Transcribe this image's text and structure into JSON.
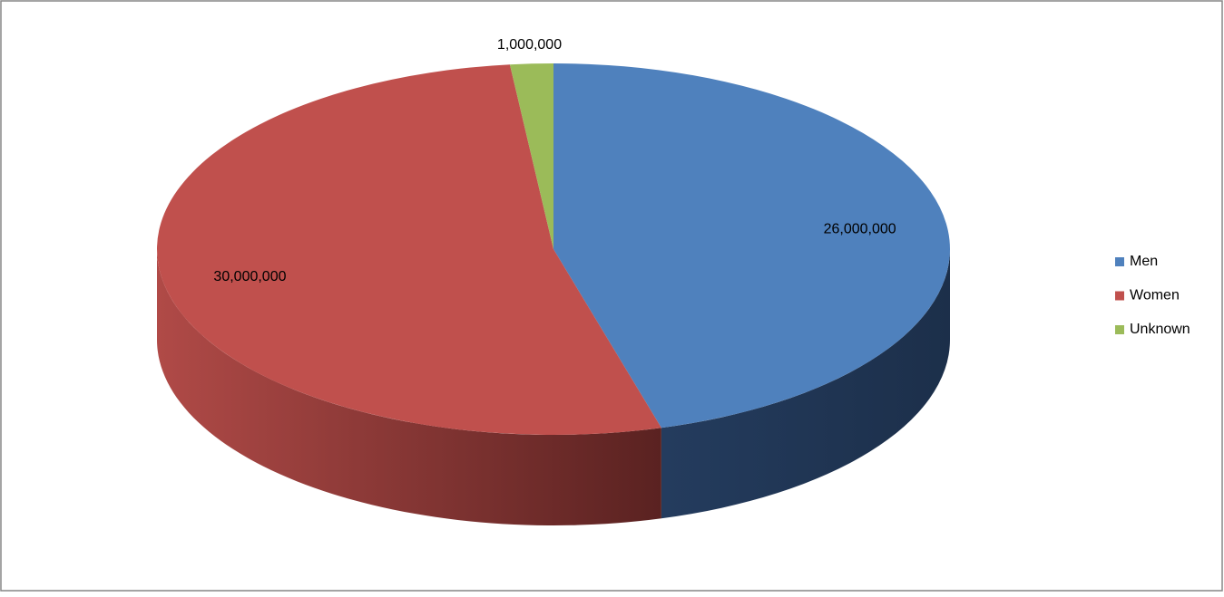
{
  "chart_data": {
    "type": "pie",
    "categories": [
      "Men",
      "Women",
      "Unknown"
    ],
    "values": [
      26000000,
      30000000,
      1000000
    ],
    "value_labels": [
      "26,000,000",
      "30,000,000",
      "1,000,000"
    ],
    "colors": [
      "#4f81bd",
      "#c0504d",
      "#9bbb59"
    ],
    "legend": "right"
  }
}
